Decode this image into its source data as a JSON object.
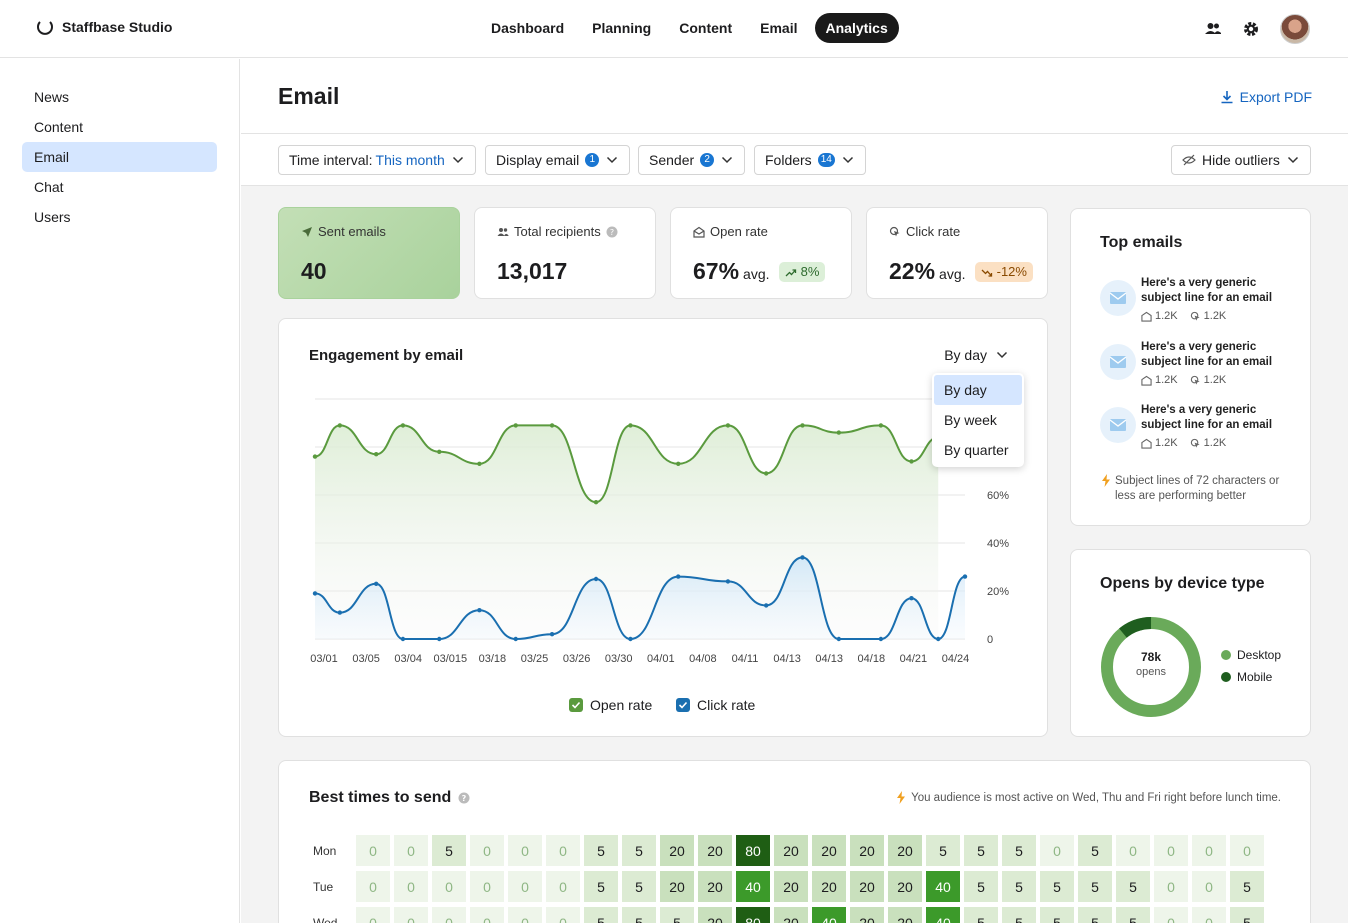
{
  "brand": {
    "name": "Staffbase Studio"
  },
  "nav": {
    "items": [
      "Dashboard",
      "Planning",
      "Content",
      "Email",
      "Analytics"
    ],
    "active": "Analytics"
  },
  "sidebar": {
    "items": [
      {
        "label": "News",
        "active": false
      },
      {
        "label": "Content",
        "active": false
      },
      {
        "label": "Email",
        "active": true
      },
      {
        "label": "Chat",
        "active": false
      },
      {
        "label": "Users",
        "active": false
      }
    ]
  },
  "header": {
    "title": "Email",
    "export_label": "Export PDF"
  },
  "filters": {
    "time_label": "Time interval:",
    "time_value": "This month",
    "display_label": "Display email",
    "display_count": "1",
    "sender_label": "Sender",
    "sender_count": "2",
    "folders_label": "Folders",
    "folders_count": "14",
    "outliers_label": "Hide outliers"
  },
  "stats": {
    "sent": {
      "label": "Sent emails",
      "value": "40"
    },
    "recipients": {
      "label": "Total recipients",
      "value": "13,017"
    },
    "open": {
      "label": "Open rate",
      "value": "67%",
      "avg": "avg.",
      "change": "8%"
    },
    "click": {
      "label": "Click rate",
      "value": "22%",
      "avg": "avg.",
      "change": "-12%"
    }
  },
  "engagement": {
    "title": "Engagement by email",
    "granularity": "By day",
    "options": [
      "By day",
      "By week",
      "By quarter"
    ],
    "legend": {
      "open": "Open rate",
      "click": "Click rate"
    }
  },
  "chart_data": {
    "type": "line",
    "categories": [
      "03/01",
      "03/05",
      "03/04",
      "03/015",
      "03/18",
      "03/25",
      "03/26",
      "03/30",
      "04/01",
      "04/08",
      "04/11",
      "04/13",
      "04/13",
      "04/18",
      "04/21",
      "04/24"
    ],
    "y_tick_labels": [
      "0",
      "20%",
      "40%",
      "60%"
    ],
    "ylim": [
      0,
      100
    ],
    "grid": true,
    "colors": {
      "open": "#5a9a3e",
      "click": "#1a6fb0"
    },
    "series": [
      {
        "name": "Open rate",
        "points": [
          [
            0,
            76
          ],
          [
            1.3,
            89
          ],
          [
            3.2,
            77
          ],
          [
            4.6,
            89
          ],
          [
            6.5,
            78
          ],
          [
            8.6,
            73
          ],
          [
            10.5,
            89
          ],
          [
            12.4,
            89
          ],
          [
            14.7,
            57
          ],
          [
            16.5,
            89
          ],
          [
            19,
            73
          ],
          [
            21.6,
            89
          ],
          [
            23.6,
            69
          ],
          [
            25.5,
            89
          ],
          [
            27.4,
            86
          ],
          [
            29.6,
            89
          ],
          [
            31.2,
            74
          ],
          [
            32.6,
            84
          ]
        ]
      },
      {
        "name": "Click rate",
        "points": [
          [
            0,
            19
          ],
          [
            1.3,
            11
          ],
          [
            3.2,
            23
          ],
          [
            4.6,
            0
          ],
          [
            6.5,
            0
          ],
          [
            8.6,
            12
          ],
          [
            10.5,
            0
          ],
          [
            12.4,
            2
          ],
          [
            14.7,
            25
          ],
          [
            16.5,
            0
          ],
          [
            19,
            26
          ],
          [
            21.6,
            24
          ],
          [
            23.6,
            14
          ],
          [
            25.5,
            34
          ],
          [
            27.4,
            0
          ],
          [
            29.6,
            0
          ],
          [
            31.2,
            17
          ],
          [
            32.6,
            0
          ],
          [
            34,
            26
          ]
        ]
      }
    ]
  },
  "top_emails": {
    "title": "Top emails",
    "items": [
      {
        "subject": "Here's a very generic subject line for an email",
        "opens": "1.2K",
        "clicks": "1.2K"
      },
      {
        "subject": "Here's a very generic subject line for an email",
        "opens": "1.2K",
        "clicks": "1.2K"
      },
      {
        "subject": "Here's a very generic subject line for an email",
        "opens": "1.2K",
        "clicks": "1.2K"
      }
    ],
    "tip": "Subject lines of 72 characters or less are performing better"
  },
  "devices": {
    "title": "Opens by device type",
    "center_value": "78k",
    "center_label": "opens",
    "legend": [
      "Desktop",
      "Mobile"
    ],
    "shares": {
      "desktop": 0.89,
      "mobile": 0.11
    },
    "colors": {
      "desktop": "#6aaa5a",
      "mobile": "#1f5e1f"
    }
  },
  "best_times": {
    "title": "Best times to send",
    "note": "You audience is most active on Wed, Thu and Fri right before lunch time.",
    "rows": [
      {
        "day": "Mon",
        "values": [
          0,
          0,
          5,
          0,
          0,
          0,
          5,
          5,
          20,
          20,
          80,
          20,
          20,
          20,
          20,
          5,
          5,
          5,
          0,
          5,
          0,
          0,
          0,
          0
        ]
      },
      {
        "day": "Tue",
        "values": [
          0,
          0,
          0,
          0,
          0,
          0,
          5,
          5,
          20,
          20,
          40,
          20,
          20,
          20,
          20,
          40,
          5,
          5,
          5,
          5,
          5,
          0,
          0,
          5
        ]
      },
      {
        "day": "Wed",
        "values": [
          0,
          0,
          0,
          0,
          0,
          0,
          5,
          5,
          5,
          20,
          80,
          20,
          40,
          20,
          20,
          40,
          5,
          5,
          5,
          5,
          5,
          0,
          0,
          5
        ]
      }
    ]
  }
}
